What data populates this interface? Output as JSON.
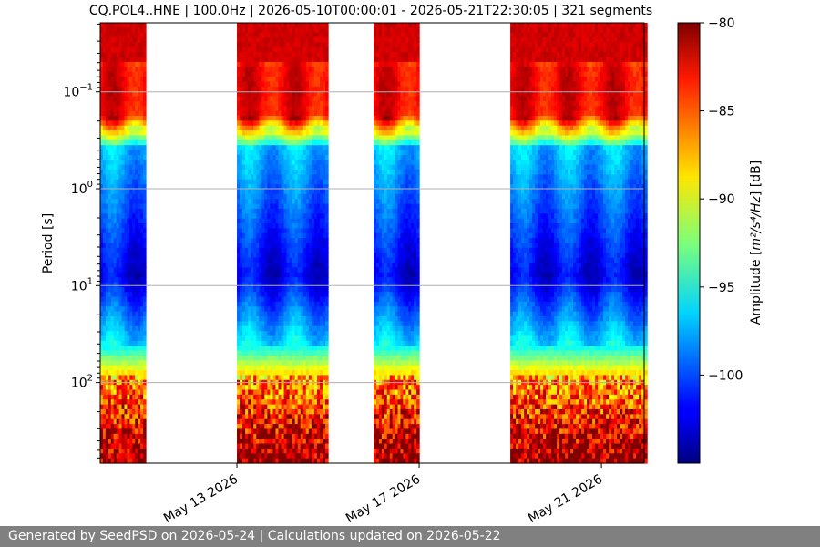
{
  "chart_data": {
    "type": "heatmap",
    "title": "CQ.POL4..HNE | 100.0Hz | 2026-05-10T00:00:01 - 2026-05-21T22:30:05 | 321 segments",
    "ylabel": "Period [s]",
    "xlabel": "",
    "x_start": "2026-05-10T00:00:01",
    "x_end": "2026-05-21T22:30:05",
    "x_tick_labels": [
      "May 13 2026",
      "May 17 2026",
      "May 21 2026"
    ],
    "x_tick_dates": [
      "2026-05-13",
      "2026-05-17",
      "2026-05-21"
    ],
    "y_scale": "log",
    "y_inverted": true,
    "y_tick_labels": [
      {
        "value": 0.1,
        "base": "10",
        "exp": "−1"
      },
      {
        "value": 1,
        "base": "10",
        "exp": "0"
      },
      {
        "value": 10,
        "base": "10",
        "exp": "1"
      },
      {
        "value": 100,
        "base": "10",
        "exp": "2"
      }
    ],
    "grid": "horizontal",
    "colormap": "jet",
    "colorbar": {
      "label_prefix": "Amplitude [",
      "label_unit": "m²/s⁴/Hz",
      "label_suffix": "] [dB]",
      "range": [
        -105,
        -80
      ],
      "ticks": [
        -80,
        -85,
        -90,
        -95,
        -100
      ]
    },
    "data_intervals": [
      {
        "start": "2026-05-10",
        "end": "2026-05-11"
      },
      {
        "start": "2026-05-13",
        "end": "2026-05-15"
      },
      {
        "start": "2026-05-16",
        "end": "2026-05-17"
      },
      {
        "start": "2026-05-19",
        "end": "2026-05-22"
      }
    ],
    "segments": 321
  },
  "footer": {
    "text": "Generated by SeedPSD on 2026-05-24 | Calculations updated on 2026-05-22"
  }
}
